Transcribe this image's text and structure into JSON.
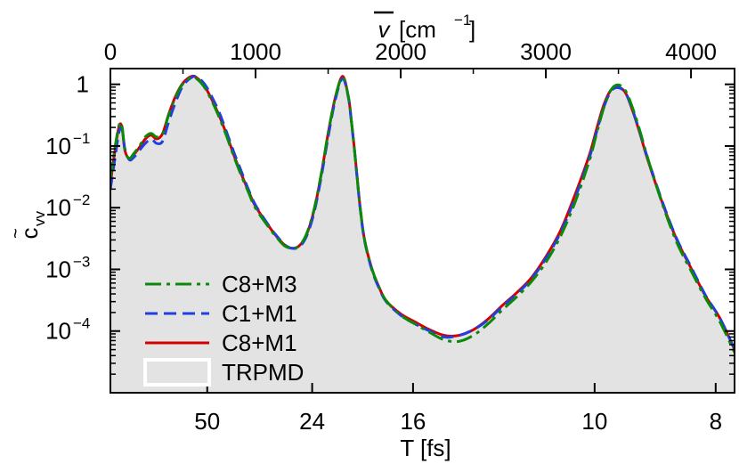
{
  "chart_data": {
    "type": "line",
    "xlabel_bottom": "T [fs]",
    "xlabel_top_main": "v",
    "xlabel_top_unit": "[cm",
    "xlabel_top_exp": "−1",
    "xlabel_top_close": "]",
    "ylabel_main": "c",
    "ylabel_tilde": "~",
    "ylabel_sub": "vv",
    "xlim": [
      0,
      4300
    ],
    "ylim": [
      1e-05,
      1.8
    ],
    "yscale": "log",
    "legend_placement": "bottom-left",
    "top_ticks": [
      {
        "value": 0,
        "label": "0"
      },
      {
        "value": 1000,
        "label": "1000"
      },
      {
        "value": 2000,
        "label": "2000"
      },
      {
        "value": 3000,
        "label": "3000"
      },
      {
        "value": 4000,
        "label": "4000"
      }
    ],
    "bottom_ticks": [
      {
        "value": 667,
        "label": "50"
      },
      {
        "value": 1390,
        "label": "24"
      },
      {
        "value": 2085,
        "label": "16"
      },
      {
        "value": 3336,
        "label": "10"
      },
      {
        "value": 4170,
        "label": "8"
      }
    ],
    "y_ticks": [
      {
        "value": 1,
        "base": "1",
        "exp": ""
      },
      {
        "value": 0.1,
        "base": "10",
        "exp": "−1"
      },
      {
        "value": 0.01,
        "base": "10",
        "exp": "−2"
      },
      {
        "value": 0.001,
        "base": "10",
        "exp": "−3"
      },
      {
        "value": 0.0001,
        "base": "10",
        "exp": "−4"
      }
    ],
    "series": [
      {
        "name": "TRPMD",
        "style": "fill",
        "color": "#e3e3e3",
        "x": [
          0,
          30,
          60,
          80,
          100,
          130,
          160,
          200,
          240,
          280,
          320,
          360,
          400,
          450,
          500,
          560,
          600,
          650,
          700,
          750,
          800,
          850,
          900,
          950,
          1000,
          1100,
          1150,
          1200,
          1250,
          1300,
          1350,
          1400,
          1450,
          1500,
          1550,
          1600,
          1640,
          1660,
          1680,
          1700,
          1720,
          1750,
          1800,
          1850,
          1900,
          2000,
          2100,
          2200,
          2300,
          2400,
          2500,
          2600,
          2700,
          2800,
          2900,
          3000,
          3100,
          3200,
          3300,
          3350,
          3400,
          3450,
          3500,
          3550,
          3600,
          3650,
          3700,
          3800,
          3900,
          4000,
          4100,
          4200,
          4300
        ],
        "y": [
          0.02,
          0.07,
          0.2,
          0.2,
          0.08,
          0.06,
          0.07,
          0.09,
          0.12,
          0.14,
          0.12,
          0.15,
          0.3,
          0.6,
          1.0,
          1.3,
          1.2,
          0.9,
          0.55,
          0.3,
          0.15,
          0.07,
          0.035,
          0.018,
          0.01,
          0.0045,
          0.0032,
          0.0024,
          0.0022,
          0.0023,
          0.0035,
          0.008,
          0.03,
          0.15,
          0.6,
          1.3,
          0.6,
          0.25,
          0.09,
          0.03,
          0.01,
          0.003,
          0.001,
          0.0005,
          0.0003,
          0.00018,
          0.00013,
          0.0001,
          8e-05,
          8e-05,
          0.0001,
          0.00015,
          0.00025,
          0.0004,
          0.0007,
          0.0015,
          0.004,
          0.015,
          0.07,
          0.18,
          0.45,
          0.8,
          0.9,
          0.7,
          0.35,
          0.15,
          0.06,
          0.012,
          0.003,
          0.001,
          0.00035,
          0.00015,
          4e-05
        ]
      },
      {
        "name": "C8+M1",
        "style": "solid",
        "color": "#d40000",
        "x": [
          0,
          30,
          60,
          80,
          100,
          130,
          160,
          200,
          240,
          280,
          320,
          360,
          400,
          450,
          500,
          560,
          600,
          650,
          700,
          750,
          800,
          850,
          900,
          950,
          1000,
          1100,
          1150,
          1200,
          1250,
          1300,
          1350,
          1400,
          1450,
          1500,
          1550,
          1600,
          1640,
          1660,
          1680,
          1700,
          1720,
          1750,
          1800,
          1850,
          1900,
          2000,
          2100,
          2200,
          2300,
          2400,
          2500,
          2600,
          2700,
          2800,
          2900,
          3000,
          3100,
          3200,
          3300,
          3350,
          3400,
          3450,
          3500,
          3550,
          3600,
          3650,
          3700,
          3800,
          3900,
          4000,
          4100,
          4200,
          4300
        ],
        "y": [
          0.025,
          0.08,
          0.21,
          0.2,
          0.085,
          0.062,
          0.072,
          0.095,
          0.13,
          0.15,
          0.13,
          0.16,
          0.32,
          0.65,
          1.05,
          1.35,
          1.25,
          0.92,
          0.56,
          0.31,
          0.155,
          0.072,
          0.036,
          0.019,
          0.0105,
          0.0047,
          0.0033,
          0.0025,
          0.0022,
          0.0024,
          0.0036,
          0.0085,
          0.032,
          0.16,
          0.62,
          1.35,
          0.62,
          0.26,
          0.095,
          0.031,
          0.0105,
          0.0031,
          0.00105,
          0.00052,
          0.00031,
          0.00019,
          0.00014,
          0.000105,
          8.5e-05,
          8.5e-05,
          0.000105,
          0.000155,
          0.00026,
          0.00042,
          0.00073,
          0.0016,
          0.0042,
          0.016,
          0.072,
          0.19,
          0.47,
          0.82,
          0.9,
          0.72,
          0.36,
          0.155,
          0.062,
          0.0125,
          0.0031,
          0.00105,
          0.00037,
          0.00016,
          5e-05
        ]
      },
      {
        "name": "C1+M1",
        "style": "dashed",
        "color": "#1f3fe0",
        "x": [
          0,
          30,
          60,
          80,
          100,
          130,
          160,
          200,
          240,
          280,
          320,
          360,
          400,
          450,
          500,
          560,
          600,
          650,
          700,
          750,
          800,
          850,
          900,
          950,
          1000,
          1100,
          1150,
          1200,
          1250,
          1300,
          1350,
          1400,
          1450,
          1500,
          1550,
          1600,
          1640,
          1660,
          1680,
          1700,
          1720,
          1750,
          1800,
          1850,
          1900,
          2000,
          2100,
          2200,
          2300,
          2400,
          2500,
          2600,
          2700,
          2800,
          2900,
          3000,
          3100,
          3200,
          3300,
          3350,
          3400,
          3450,
          3500,
          3550,
          3600,
          3650,
          3700,
          3800,
          3900,
          4000,
          4100,
          4200,
          4300
        ],
        "y": [
          0.02,
          0.06,
          0.17,
          0.19,
          0.09,
          0.06,
          0.065,
          0.085,
          0.11,
          0.13,
          0.11,
          0.12,
          0.24,
          0.52,
          0.95,
          1.3,
          1.3,
          1.0,
          0.62,
          0.35,
          0.17,
          0.08,
          0.04,
          0.02,
          0.011,
          0.0048,
          0.0034,
          0.0025,
          0.0022,
          0.0023,
          0.0034,
          0.0078,
          0.029,
          0.14,
          0.57,
          1.25,
          0.6,
          0.25,
          0.092,
          0.03,
          0.0101,
          0.003,
          0.001,
          0.0005,
          0.0003,
          0.00018,
          0.00013,
          0.0001,
          8e-05,
          8.5e-05,
          0.000105,
          0.00015,
          0.00025,
          0.0004,
          0.0007,
          0.0015,
          0.0039,
          0.014,
          0.065,
          0.17,
          0.43,
          0.78,
          0.88,
          0.72,
          0.37,
          0.16,
          0.065,
          0.013,
          0.0032,
          0.0011,
          0.00038,
          0.00016,
          5e-05
        ]
      },
      {
        "name": "C8+M3",
        "style": "dashdot",
        "color": "#0a8a0a",
        "x": [
          0,
          30,
          60,
          80,
          100,
          130,
          160,
          200,
          240,
          280,
          320,
          360,
          400,
          450,
          500,
          560,
          600,
          650,
          700,
          750,
          800,
          850,
          900,
          950,
          1000,
          1100,
          1150,
          1200,
          1250,
          1300,
          1350,
          1400,
          1450,
          1500,
          1550,
          1600,
          1640,
          1660,
          1680,
          1700,
          1720,
          1750,
          1800,
          1850,
          1900,
          2000,
          2100,
          2200,
          2300,
          2400,
          2500,
          2600,
          2700,
          2800,
          2900,
          3000,
          3100,
          3200,
          3300,
          3350,
          3400,
          3450,
          3500,
          3550,
          3600,
          3650,
          3700,
          3800,
          3900,
          4000,
          4100,
          4200,
          4300
        ],
        "y": [
          0.03,
          0.09,
          0.22,
          0.21,
          0.085,
          0.063,
          0.075,
          0.1,
          0.14,
          0.16,
          0.14,
          0.16,
          0.31,
          0.63,
          1.02,
          1.3,
          1.2,
          0.88,
          0.53,
          0.29,
          0.145,
          0.068,
          0.034,
          0.018,
          0.0098,
          0.0045,
          0.0032,
          0.0024,
          0.0022,
          0.0024,
          0.0037,
          0.0088,
          0.033,
          0.16,
          0.62,
          1.3,
          0.62,
          0.26,
          0.095,
          0.031,
          0.0105,
          0.0031,
          0.00105,
          0.00052,
          0.00031,
          0.00018,
          0.00013,
          9.5e-05,
          7.2e-05,
          6.8e-05,
          8.5e-05,
          0.00013,
          0.00022,
          0.00036,
          0.00063,
          0.0013,
          0.0034,
          0.012,
          0.058,
          0.16,
          0.42,
          0.82,
          0.98,
          0.78,
          0.4,
          0.17,
          0.066,
          0.012,
          0.0028,
          0.00095,
          0.00034,
          0.00014,
          4.5e-05
        ]
      }
    ]
  }
}
